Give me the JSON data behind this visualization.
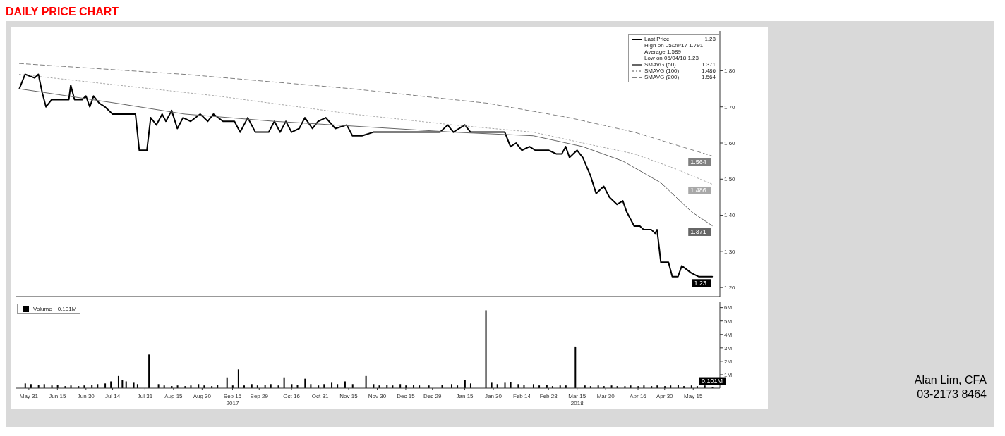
{
  "chart_data": [
    {
      "type": "line",
      "title": "DAILY PRICE CHART",
      "legend": "top right",
      "tick_labels": "y",
      "xlim": [
        "2017-05-24",
        "2018-05-29"
      ],
      "ylim": [
        1.175,
        1.91
      ],
      "yticks": [
        {
          "value": 1.2,
          "label": "1.20"
        },
        {
          "value": 1.3,
          "label": "1.30"
        },
        {
          "value": 1.4,
          "label": "1.40"
        },
        {
          "value": 1.5,
          "label": "1.50"
        },
        {
          "value": 1.6,
          "label": "1.60"
        },
        {
          "value": 1.7,
          "label": "1.70"
        },
        {
          "value": 1.8,
          "label": "1.80"
        }
      ],
      "annotations": [
        "High on 05/29/17 1.791",
        "Average 1.589",
        "Low on 05/04/18 1.23"
      ],
      "series": [
        {
          "name": "Last Price",
          "color": "#000000",
          "line_style": "solid",
          "x": [
            "2017-05-26",
            "2017-05-29",
            "2017-06-03",
            "2017-06-05",
            "2017-06-07",
            "2017-06-09",
            "2017-06-12",
            "2017-06-21",
            "2017-06-22",
            "2017-06-24",
            "2017-06-28",
            "2017-06-30",
            "2017-07-02",
            "2017-07-04",
            "2017-07-07",
            "2017-07-10",
            "2017-07-14",
            "2017-07-26",
            "2017-07-28",
            "2017-08-01",
            "2017-08-03",
            "2017-08-06",
            "2017-08-09",
            "2017-08-11",
            "2017-08-14",
            "2017-08-17",
            "2017-08-20",
            "2017-08-24",
            "2017-08-29",
            "2017-09-02",
            "2017-09-05",
            "2017-09-10",
            "2017-09-16",
            "2017-09-19",
            "2017-09-23",
            "2017-09-27",
            "2017-10-04",
            "2017-10-07",
            "2017-10-10",
            "2017-10-13",
            "2017-10-16",
            "2017-10-20",
            "2017-10-23",
            "2017-10-27",
            "2017-10-30",
            "2017-11-03",
            "2017-11-08",
            "2017-11-14",
            "2017-11-17",
            "2017-11-22",
            "2017-11-28",
            "2017-12-01",
            "2018-01-02",
            "2018-01-06",
            "2018-01-09",
            "2018-01-15",
            "2018-01-18",
            "2018-02-05",
            "2018-02-08",
            "2018-02-11",
            "2018-02-14",
            "2018-02-18",
            "2018-02-21",
            "2018-02-28",
            "2018-03-04",
            "2018-03-07",
            "2018-03-09",
            "2018-03-11",
            "2018-03-15",
            "2018-03-18",
            "2018-03-22",
            "2018-03-25",
            "2018-03-29",
            "2018-04-01",
            "2018-04-05",
            "2018-04-08",
            "2018-04-10",
            "2018-04-14",
            "2018-04-17",
            "2018-04-19",
            "2018-04-21",
            "2018-04-23",
            "2018-04-25",
            "2018-04-26",
            "2018-04-28",
            "2018-05-02",
            "2018-05-04",
            "2018-05-07",
            "2018-05-09",
            "2018-05-14",
            "2018-05-18",
            "2018-05-25"
          ],
          "values": [
            1.75,
            1.79,
            1.78,
            1.79,
            1.74,
            1.7,
            1.72,
            1.72,
            1.76,
            1.72,
            1.72,
            1.73,
            1.7,
            1.73,
            1.71,
            1.7,
            1.68,
            1.68,
            1.58,
            1.58,
            1.67,
            1.65,
            1.68,
            1.66,
            1.69,
            1.64,
            1.67,
            1.66,
            1.68,
            1.66,
            1.68,
            1.66,
            1.66,
            1.63,
            1.67,
            1.63,
            1.63,
            1.66,
            1.63,
            1.66,
            1.63,
            1.64,
            1.67,
            1.64,
            1.66,
            1.67,
            1.64,
            1.65,
            1.62,
            1.62,
            1.63,
            1.63,
            1.63,
            1.65,
            1.63,
            1.65,
            1.63,
            1.63,
            1.59,
            1.6,
            1.58,
            1.59,
            1.58,
            1.58,
            1.57,
            1.57,
            1.59,
            1.56,
            1.58,
            1.56,
            1.51,
            1.46,
            1.48,
            1.45,
            1.43,
            1.44,
            1.41,
            1.37,
            1.37,
            1.36,
            1.36,
            1.36,
            1.35,
            1.36,
            1.27,
            1.27,
            1.23,
            1.23,
            1.26,
            1.24,
            1.23,
            1.23
          ],
          "value_labels": [
            null,
            null,
            null,
            null,
            null,
            null,
            null,
            null,
            null,
            null,
            null,
            null,
            null,
            null,
            null,
            null,
            null,
            null,
            null,
            null,
            null,
            null,
            null,
            null,
            null,
            null,
            null,
            null,
            null,
            null,
            null,
            null,
            null,
            null,
            null,
            null,
            null,
            null,
            null,
            null,
            null,
            null,
            null,
            null,
            null,
            null,
            null,
            null,
            null,
            null,
            null,
            null,
            null,
            null,
            null,
            null,
            null,
            null,
            null,
            null,
            null,
            null,
            null,
            null,
            null,
            null,
            null,
            null,
            null,
            null,
            null,
            null,
            null,
            null,
            null,
            null,
            null,
            null,
            null,
            null,
            null,
            null,
            null,
            null,
            null,
            null,
            null,
            null,
            null,
            null,
            null,
            "1.23"
          ]
        },
        {
          "name": "SMAVG (50)",
          "color": "#666666",
          "line_style": "solid",
          "x": [
            "2017-05-26",
            "2017-07-16",
            "2017-08-21",
            "2017-10-07",
            "2018-01-09",
            "2018-02-20",
            "2018-03-18",
            "2018-04-08",
            "2018-04-28",
            "2018-05-14",
            "2018-05-25"
          ],
          "values": [
            1.75,
            1.71,
            1.68,
            1.66,
            1.63,
            1.62,
            1.59,
            1.55,
            1.49,
            1.41,
            1.371
          ],
          "value_labels": [
            null,
            null,
            null,
            null,
            null,
            null,
            null,
            null,
            null,
            null,
            "1.371"
          ]
        },
        {
          "name": "SMAVG (100)",
          "color": "#a8a8a8",
          "line_style": "dotted",
          "x": [
            "2017-05-26",
            "2017-09-07",
            "2017-11-17",
            "2018-01-09",
            "2018-02-20",
            "2018-03-18",
            "2018-04-14",
            "2018-05-05",
            "2018-05-25"
          ],
          "values": [
            1.79,
            1.73,
            1.68,
            1.65,
            1.63,
            1.6,
            1.57,
            1.53,
            1.486
          ],
          "value_labels": [
            null,
            null,
            null,
            null,
            null,
            null,
            null,
            null,
            "1.486"
          ]
        },
        {
          "name": "SMAVG (200)",
          "color": "#808080",
          "line_style": "dashed",
          "x": [
            "2017-05-26",
            "2017-08-21",
            "2017-11-17",
            "2018-01-27",
            "2018-03-11",
            "2018-04-14",
            "2018-05-25"
          ],
          "values": [
            1.82,
            1.79,
            1.75,
            1.71,
            1.67,
            1.63,
            1.564
          ],
          "value_labels": [
            null,
            null,
            null,
            null,
            null,
            null,
            "1.564"
          ]
        }
      ]
    },
    {
      "type": "bar",
      "legend": "top left",
      "xlim": [
        "2017-05-24",
        "2018-05-29"
      ],
      "xticks": [
        {
          "value": "2017-05-31",
          "label": "May 31"
        },
        {
          "value": "2017-06-15",
          "label": "Jun 15"
        },
        {
          "value": "2017-06-30",
          "label": "Jun 30"
        },
        {
          "value": "2017-07-14",
          "label": "Jul 14"
        },
        {
          "value": "2017-07-31",
          "label": "Jul 31"
        },
        {
          "value": "2017-08-15",
          "label": "Aug 15"
        },
        {
          "value": "2017-08-30",
          "label": "Aug 30"
        },
        {
          "value": "2017-09-15",
          "label": "Sep 15\n2017"
        },
        {
          "value": "2017-09-29",
          "label": "Sep 29"
        },
        {
          "value": "2017-10-16",
          "label": "Oct 16"
        },
        {
          "value": "2017-10-31",
          "label": "Oct 31"
        },
        {
          "value": "2017-11-15",
          "label": "Nov 15"
        },
        {
          "value": "2017-11-30",
          "label": "Nov 30"
        },
        {
          "value": "2017-12-15",
          "label": "Dec 15"
        },
        {
          "value": "2017-12-29",
          "label": "Dec 29"
        },
        {
          "value": "2018-01-15",
          "label": "Jan 15"
        },
        {
          "value": "2018-01-30",
          "label": "Jan 30"
        },
        {
          "value": "2018-02-14",
          "label": "Feb 14"
        },
        {
          "value": "2018-02-28",
          "label": "Feb 28"
        },
        {
          "value": "2018-03-15",
          "label": "Mar 15\n2018"
        },
        {
          "value": "2018-03-30",
          "label": "Mar 30"
        },
        {
          "value": "2018-04-16",
          "label": "Apr 16"
        },
        {
          "value": "2018-04-30",
          "label": "Apr 30"
        },
        {
          "value": "2018-05-15",
          "label": "May 15"
        }
      ],
      "ylim": [
        0,
        6.4
      ],
      "yticks": [
        {
          "value": 1,
          "label": "1M"
        },
        {
          "value": 2,
          "label": "2M"
        },
        {
          "value": 3,
          "label": "3M"
        },
        {
          "value": 4,
          "label": "4M"
        },
        {
          "value": 5,
          "label": "5M"
        },
        {
          "value": 6,
          "label": "6M"
        }
      ],
      "annotations": [
        "Alan Lim, CFA",
        "03-2173 8464"
      ],
      "series": [
        {
          "name": "Volume",
          "color": "#000000",
          "x": [
            "2017-05-29",
            "2017-06-01",
            "2017-06-05",
            "2017-06-08",
            "2017-06-12",
            "2017-06-15",
            "2017-06-19",
            "2017-06-22",
            "2017-06-26",
            "2017-06-29",
            "2017-07-03",
            "2017-07-06",
            "2017-07-10",
            "2017-07-13",
            "2017-07-17",
            "2017-07-19",
            "2017-07-21",
            "2017-07-25",
            "2017-07-27",
            "2017-08-02",
            "2017-08-07",
            "2017-08-10",
            "2017-08-14",
            "2017-08-17",
            "2017-08-21",
            "2017-08-24",
            "2017-08-28",
            "2017-08-31",
            "2017-09-04",
            "2017-09-07",
            "2017-09-12",
            "2017-09-15",
            "2017-09-18",
            "2017-09-21",
            "2017-09-25",
            "2017-09-28",
            "2017-10-02",
            "2017-10-05",
            "2017-10-09",
            "2017-10-12",
            "2017-10-16",
            "2017-10-19",
            "2017-10-23",
            "2017-10-26",
            "2017-10-30",
            "2017-11-02",
            "2017-11-06",
            "2017-11-09",
            "2017-11-13",
            "2017-11-17",
            "2017-11-24",
            "2017-11-28",
            "2017-12-01",
            "2017-12-05",
            "2017-12-08",
            "2017-12-12",
            "2017-12-15",
            "2017-12-19",
            "2017-12-22",
            "2017-12-27",
            "2018-01-03",
            "2018-01-08",
            "2018-01-11",
            "2018-01-15",
            "2018-01-18",
            "2018-01-26",
            "2018-01-29",
            "2018-02-01",
            "2018-02-05",
            "2018-02-08",
            "2018-02-12",
            "2018-02-15",
            "2018-02-20",
            "2018-02-23",
            "2018-02-27",
            "2018-03-02",
            "2018-03-06",
            "2018-03-09",
            "2018-03-14",
            "2018-03-19",
            "2018-03-22",
            "2018-03-26",
            "2018-03-29",
            "2018-04-02",
            "2018-04-05",
            "2018-04-09",
            "2018-04-12",
            "2018-04-16",
            "2018-04-19",
            "2018-04-23",
            "2018-04-26",
            "2018-04-30",
            "2018-05-03",
            "2018-05-07",
            "2018-05-10",
            "2018-05-14",
            "2018-05-17",
            "2018-05-21",
            "2018-05-25"
          ],
          "values": [
            0.35,
            0.3,
            0.25,
            0.3,
            0.2,
            0.25,
            0.15,
            0.2,
            0.15,
            0.2,
            0.25,
            0.3,
            0.35,
            0.5,
            0.9,
            0.6,
            0.5,
            0.4,
            0.3,
            2.5,
            0.3,
            0.2,
            0.15,
            0.2,
            0.15,
            0.2,
            0.3,
            0.2,
            0.15,
            0.25,
            0.8,
            0.2,
            1.4,
            0.2,
            0.3,
            0.2,
            0.25,
            0.3,
            0.2,
            0.8,
            0.3,
            0.25,
            0.7,
            0.3,
            0.2,
            0.3,
            0.4,
            0.3,
            0.5,
            0.3,
            0.9,
            0.3,
            0.2,
            0.25,
            0.2,
            0.3,
            0.2,
            0.25,
            0.2,
            0.2,
            0.25,
            0.3,
            0.2,
            0.6,
            0.35,
            5.8,
            0.4,
            0.3,
            0.4,
            0.45,
            0.3,
            0.25,
            0.3,
            0.2,
            0.25,
            0.15,
            0.2,
            0.2,
            3.1,
            0.2,
            0.15,
            0.2,
            0.15,
            0.2,
            0.15,
            0.15,
            0.2,
            0.15,
            0.2,
            0.15,
            0.2,
            0.15,
            0.2,
            0.25,
            0.15,
            0.2,
            0.15,
            0.2,
            0.101
          ],
          "value_labels": [
            null,
            null,
            null,
            null,
            null,
            null,
            null,
            null,
            null,
            null,
            null,
            null,
            null,
            null,
            null,
            null,
            null,
            null,
            null,
            null,
            null,
            null,
            null,
            null,
            null,
            null,
            null,
            null,
            null,
            null,
            null,
            null,
            null,
            null,
            null,
            null,
            null,
            null,
            null,
            null,
            null,
            null,
            null,
            null,
            null,
            null,
            null,
            null,
            null,
            null,
            null,
            null,
            null,
            null,
            null,
            null,
            null,
            null,
            null,
            null,
            null,
            null,
            null,
            null,
            null,
            null,
            null,
            null,
            null,
            null,
            null,
            null,
            null,
            null,
            null,
            null,
            null,
            null,
            null,
            null,
            null,
            null,
            null,
            null,
            null,
            null,
            null,
            null,
            null,
            null,
            null,
            null,
            null,
            null,
            null,
            null,
            null,
            null,
            "0.101M"
          ]
        }
      ]
    }
  ]
}
